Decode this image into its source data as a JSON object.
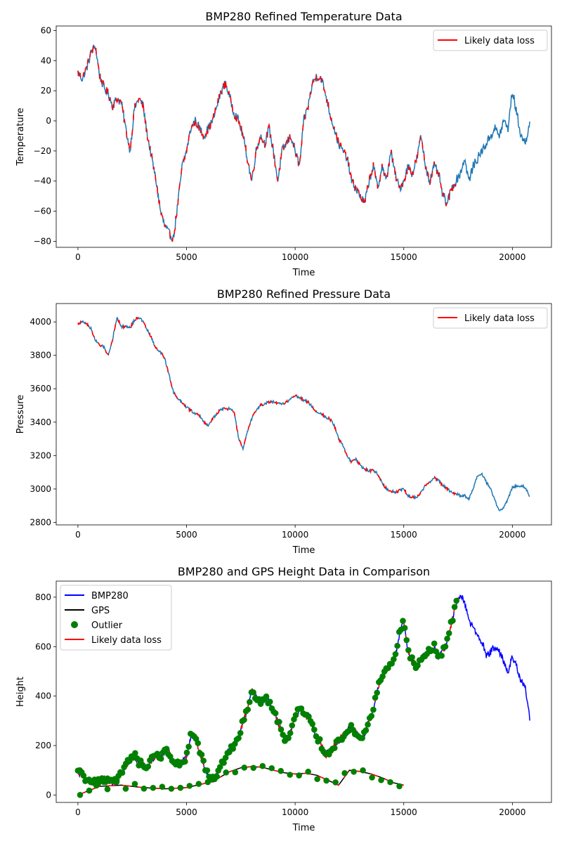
{
  "chart_data": [
    {
      "type": "line",
      "title": "BMP280 Refined Temperature Data",
      "xlabel": "Time",
      "ylabel": "Temperature",
      "xlim": [
        -1000,
        21800
      ],
      "ylim": [
        -84,
        63
      ],
      "xticks": [
        0,
        5000,
        10000,
        15000,
        20000
      ],
      "yticks": [
        -80,
        -60,
        -40,
        -20,
        0,
        20,
        40,
        60
      ],
      "legend": "top-right",
      "series": [
        {
          "role": "base",
          "color": "#1f77b4",
          "noise": 3.0,
          "x": [
            0,
            200,
            400,
            600,
            800,
            1000,
            1200,
            1400,
            1600,
            1800,
            2000,
            2200,
            2400,
            2600,
            2800,
            3000,
            3200,
            3400,
            3600,
            3800,
            4000,
            4200,
            4400,
            4600,
            4800,
            5000,
            5200,
            5400,
            5600,
            5800,
            6000,
            6200,
            6400,
            6600,
            6800,
            7000,
            7200,
            7400,
            7600,
            7800,
            8000,
            8200,
            8400,
            8600,
            8800,
            9000,
            9200,
            9400,
            9600,
            9800,
            10000,
            10200,
            10400,
            10600,
            10800,
            11000,
            11200,
            11400,
            11600,
            11800,
            12000,
            12200,
            12400,
            12600,
            12800,
            13000,
            13200,
            13400,
            13600,
            13800,
            14000,
            14200,
            14400,
            14600,
            14800,
            15000,
            15200,
            15400,
            15600,
            15800,
            16000,
            16200,
            16400,
            16600,
            16800,
            17000,
            17200,
            17400,
            17600,
            17800,
            18000,
            18200,
            18400,
            18600,
            18800,
            19000,
            19200,
            19400,
            19600,
            19800,
            20000,
            20200,
            20400,
            20600,
            20800
          ],
          "y": [
            32,
            28,
            35,
            45,
            50,
            30,
            22,
            18,
            10,
            15,
            12,
            -5,
            -20,
            8,
            15,
            10,
            -10,
            -25,
            -40,
            -60,
            -70,
            -75,
            -78,
            -55,
            -30,
            -20,
            -5,
            0,
            -5,
            -10,
            -5,
            0,
            10,
            20,
            25,
            15,
            5,
            0,
            -10,
            -25,
            -40,
            -20,
            -10,
            -15,
            -5,
            -20,
            -40,
            -20,
            -15,
            -10,
            -20,
            -30,
            0,
            10,
            25,
            30,
            28,
            18,
            5,
            -5,
            -15,
            -20,
            -25,
            -40,
            -45,
            -50,
            -55,
            -40,
            -30,
            -45,
            -30,
            -40,
            -20,
            -35,
            -45,
            -40,
            -30,
            -35,
            -25,
            -10,
            -30,
            -40,
            -30,
            -35,
            -50,
            -55,
            -45,
            -40,
            -35,
            -25,
            -40,
            -30,
            -25,
            -20,
            -15,
            -10,
            -5,
            -10,
            0,
            -5,
            20,
            5,
            -10,
            -15,
            0
          ]
        },
        {
          "role": "loss",
          "name": "Likely data loss",
          "color": "#ff0000",
          "xmax": 17400
        }
      ]
    },
    {
      "type": "line",
      "title": "BMP280 Refined Pressure Data",
      "xlabel": "Time",
      "ylabel": "Pressure",
      "xlim": [
        -1000,
        21800
      ],
      "ylim": [
        2785,
        4110
      ],
      "xticks": [
        0,
        5000,
        10000,
        15000,
        20000
      ],
      "yticks": [
        2800,
        3000,
        3200,
        3400,
        3600,
        3800,
        4000
      ],
      "legend": "top-right",
      "series": [
        {
          "role": "base",
          "color": "#1f77b4",
          "noise": 8,
          "x": [
            0,
            200,
            400,
            600,
            800,
            1000,
            1200,
            1400,
            1600,
            1800,
            2000,
            2200,
            2400,
            2600,
            2800,
            3000,
            3200,
            3400,
            3600,
            3800,
            4000,
            4200,
            4400,
            4600,
            4800,
            5000,
            5200,
            5400,
            5600,
            5800,
            6000,
            6200,
            6400,
            6600,
            6800,
            7000,
            7200,
            7400,
            7600,
            7800,
            8000,
            8200,
            8400,
            8600,
            8800,
            9000,
            9200,
            9400,
            9600,
            9800,
            10000,
            10200,
            10400,
            10600,
            10800,
            11000,
            11200,
            11400,
            11600,
            11800,
            12000,
            12200,
            12400,
            12600,
            12800,
            13000,
            13200,
            13400,
            13600,
            13800,
            14000,
            14200,
            14400,
            14600,
            14800,
            15000,
            15200,
            15400,
            15600,
            15800,
            16000,
            16200,
            16400,
            16600,
            16800,
            17000,
            17200,
            17400,
            17600,
            17800,
            18000,
            18200,
            18400,
            18600,
            18800,
            19000,
            19200,
            19400,
            19600,
            19800,
            20000,
            20200,
            20400,
            20600,
            20800
          ],
          "y": [
            3990,
            4000,
            3990,
            3960,
            3890,
            3860,
            3850,
            3800,
            3900,
            4030,
            3970,
            3975,
            3965,
            4010,
            4030,
            4000,
            3950,
            3900,
            3840,
            3820,
            3780,
            3680,
            3580,
            3540,
            3520,
            3490,
            3470,
            3450,
            3440,
            3400,
            3380,
            3420,
            3450,
            3480,
            3480,
            3480,
            3460,
            3300,
            3240,
            3340,
            3420,
            3470,
            3500,
            3510,
            3520,
            3520,
            3510,
            3510,
            3520,
            3540,
            3560,
            3550,
            3530,
            3520,
            3490,
            3460,
            3450,
            3430,
            3420,
            3380,
            3300,
            3260,
            3200,
            3160,
            3180,
            3140,
            3120,
            3110,
            3110,
            3090,
            3040,
            3000,
            2990,
            2980,
            2990,
            3000,
            2960,
            2950,
            2950,
            2980,
            3020,
            3040,
            3070,
            3050,
            3020,
            3000,
            2980,
            2970,
            2960,
            2960,
            2940,
            3000,
            3080,
            3090,
            3040,
            3000,
            2930,
            2870,
            2890,
            2940,
            3010,
            3020,
            3020,
            3010,
            2950
          ]
        },
        {
          "role": "loss",
          "name": "Likely data loss",
          "color": "#ff0000",
          "xmax": 17500
        }
      ]
    },
    {
      "type": "line",
      "title": "BMP280 and GPS Height Data in Comparison",
      "xlabel": "Time",
      "ylabel": "Height",
      "xlim": [
        -1000,
        21800
      ],
      "ylim": [
        -30,
        865
      ],
      "xticks": [
        0,
        5000,
        10000,
        15000,
        20000
      ],
      "yticks": [
        0,
        200,
        400,
        600,
        800
      ],
      "legend": "top-left",
      "series": [
        {
          "role": "base",
          "name": "BMP280",
          "color": "#0000ff",
          "noise": 14,
          "x": [
            0,
            200,
            400,
            600,
            800,
            1000,
            1200,
            1400,
            1600,
            1800,
            2000,
            2200,
            2400,
            2600,
            2800,
            3000,
            3200,
            3400,
            3600,
            3800,
            4000,
            4200,
            4400,
            4600,
            4800,
            5000,
            5200,
            5400,
            5600,
            5800,
            6000,
            6200,
            6400,
            6600,
            6800,
            7000,
            7200,
            7400,
            7600,
            7800,
            8000,
            8200,
            8400,
            8600,
            8800,
            9000,
            9200,
            9400,
            9600,
            9800,
            10000,
            10200,
            10400,
            10600,
            10800,
            11000,
            11200,
            11400,
            11600,
            11800,
            12000,
            12200,
            12400,
            12600,
            12800,
            13000,
            13200,
            13400,
            13600,
            13800,
            14000,
            14200,
            14400,
            14600,
            14800,
            15000,
            15200,
            15400,
            15600,
            15800,
            16000,
            16200,
            16400,
            16600,
            16800,
            17000,
            17200,
            17400,
            17600,
            17800,
            18000,
            18200,
            18400,
            18600,
            18800,
            19000,
            19200,
            19400,
            19600,
            19800,
            20000,
            20200,
            20400,
            20600,
            20800
          ],
          "y": [
            95,
            80,
            60,
            40,
            50,
            55,
            65,
            60,
            55,
            50,
            90,
            120,
            140,
            160,
            130,
            120,
            110,
            140,
            160,
            150,
            180,
            170,
            140,
            120,
            130,
            150,
            240,
            230,
            180,
            120,
            80,
            60,
            80,
            120,
            160,
            190,
            190,
            230,
            300,
            340,
            420,
            400,
            370,
            390,
            380,
            340,
            300,
            250,
            220,
            260,
            320,
            350,
            330,
            310,
            280,
            240,
            200,
            160,
            180,
            200,
            220,
            240,
            260,
            270,
            250,
            230,
            250,
            300,
            350,
            430,
            480,
            500,
            530,
            560,
            650,
            700,
            580,
            540,
            520,
            550,
            570,
            580,
            600,
            560,
            580,
            620,
            700,
            770,
            810,
            780,
            700,
            680,
            640,
            620,
            560,
            580,
            600,
            580,
            540,
            500,
            560,
            520,
            460,
            430,
            310
          ]
        },
        {
          "role": "gps",
          "name": "GPS",
          "color": "#000000",
          "x": [
            0,
            1000,
            2000,
            3000,
            4000,
            5000,
            6000,
            6500,
            7000,
            7500,
            8000,
            8500,
            9000,
            9500,
            10000,
            10500,
            11000,
            11500,
            12000,
            12500,
            13000,
            13500,
            14000,
            14500,
            15000
          ],
          "y": [
            0,
            35,
            40,
            30,
            25,
            30,
            50,
            70,
            95,
            110,
            115,
            112,
            100,
            90,
            85,
            88,
            80,
            60,
            40,
            100,
            95,
            85,
            70,
            50,
            40
          ]
        },
        {
          "role": "outlier",
          "name": "Outlier",
          "color": "#008000"
        },
        {
          "role": "loss",
          "name": "Likely data loss",
          "color": "#ff0000",
          "xmax": 17600
        }
      ]
    }
  ]
}
